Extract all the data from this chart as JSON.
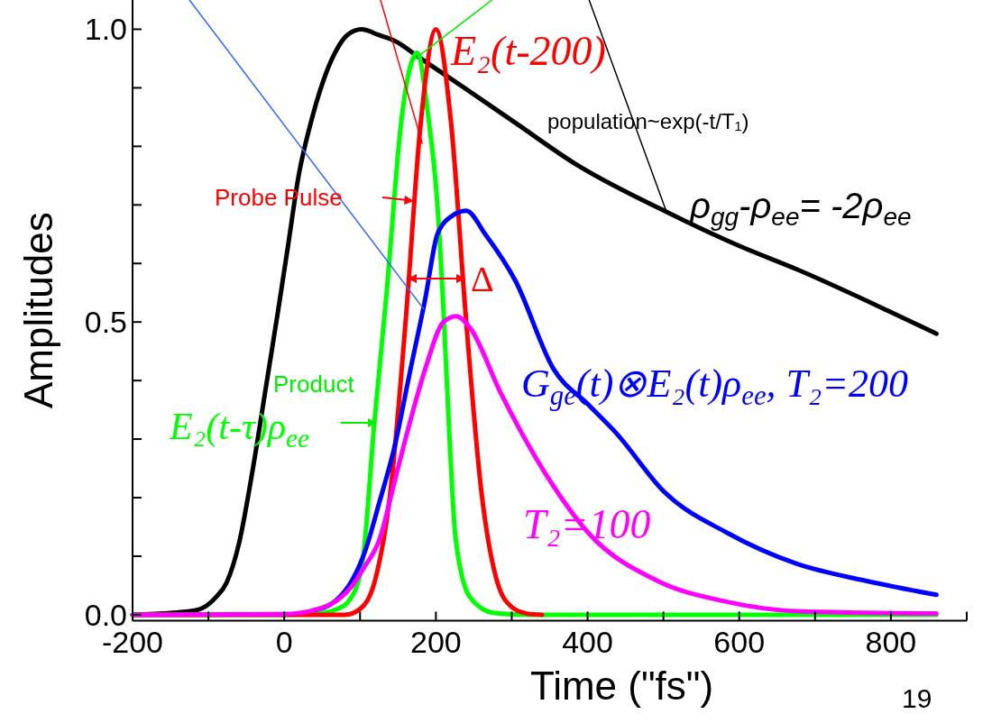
{
  "chart_data": {
    "type": "line",
    "xlabel": "Time (\"fs\")",
    "ylabel": "Amplitudes",
    "xlim": [
      -200,
      900
    ],
    "ylim": [
      -0.01,
      1.05
    ],
    "xticks": [
      -200,
      {
        "value": -100,
        "label": null
      },
      0,
      {
        "value": 100,
        "label": null
      },
      200,
      {
        "value": 300,
        "label": null
      },
      400,
      {
        "value": 500,
        "label": null
      },
      600,
      {
        "value": 700,
        "label": null
      },
      800,
      {
        "value": 900,
        "label": null
      }
    ],
    "yticks": [
      {
        "value": 0,
        "label": "0.0"
      },
      {
        "value": 0.1,
        "label": null
      },
      {
        "value": 0.2,
        "label": null
      },
      {
        "value": 0.3,
        "label": null
      },
      {
        "value": 0.4,
        "label": null
      },
      {
        "value": 0.5,
        "label": "0.5"
      },
      {
        "value": 0.6,
        "label": null
      },
      {
        "value": 0.7,
        "label": null
      },
      {
        "value": 0.8,
        "label": null
      },
      {
        "value": 0.9,
        "label": null
      },
      {
        "value": 1.0,
        "label": "1.0"
      }
    ],
    "grid": false,
    "legend": false,
    "marker": "none",
    "line_style": "solid",
    "series": [
      {
        "name": "ρ$_{gg}$-ρ$_{ee}$= -2ρ$_{ee}$",
        "color": "#000000",
        "x": [
          -200,
          -150,
          -115,
          -90,
          -76,
          -60,
          -40,
          -24,
          -8,
          5,
          19,
          35,
          51,
          67,
          83,
          102,
          125,
          146,
          180,
          226,
          305,
          384,
          501,
          600,
          676,
          795,
          860
        ],
        "values": [
          0,
          0.003,
          0.008,
          0.03,
          0.055,
          0.12,
          0.26,
          0.39,
          0.52,
          0.63,
          0.75,
          0.84,
          0.91,
          0.96,
          0.99,
          1.0,
          0.99,
          0.98,
          0.95,
          0.91,
          0.84,
          0.77,
          0.69,
          0.63,
          0.59,
          0.52,
          0.48
        ]
      },
      {
        "name": "E₂(t-τ)ρ$_{ee}$",
        "color": "#00ff00",
        "x": [
          -200,
          0,
          50,
          70,
          83,
          102,
          119,
          135,
          155,
          165,
          175,
          190,
          202,
          210,
          218,
          226,
          245,
          277,
          320,
          860
        ],
        "values": [
          0,
          0,
          0.003,
          0.01,
          0.02,
          0.08,
          0.33,
          0.55,
          0.85,
          0.93,
          0.96,
          0.85,
          0.7,
          0.52,
          0.3,
          0.13,
          0.03,
          0.003,
          0,
          0
        ]
      },
      {
        "name": "E₂(t-200)",
        "color": "#ff0000",
        "x": [
          -200,
          80,
          100,
          120,
          140,
          160,
          180,
          200,
          220,
          240,
          260,
          280,
          300,
          320,
          340
        ],
        "values": [
          0,
          0,
          0.01,
          0.06,
          0.21,
          0.5,
          0.84,
          1.0,
          0.84,
          0.5,
          0.21,
          0.06,
          0.013,
          0.002,
          0
        ]
      },
      {
        "name": "G$_{ge}$(t)⊗E₂(t)ρ$_{ee}$, T₂=200",
        "color": "#0000ff",
        "x": [
          40,
          67,
          90,
          107,
          125,
          146,
          165,
          186,
          202,
          220,
          240,
          265,
          305,
          355,
          400,
          438,
          501,
          584,
          676,
          767,
          860
        ],
        "values": [
          0.008,
          0.023,
          0.06,
          0.11,
          0.19,
          0.29,
          0.41,
          0.54,
          0.65,
          0.68,
          0.69,
          0.65,
          0.57,
          0.42,
          0.36,
          0.31,
          0.21,
          0.14,
          0.087,
          0.058,
          0.034
        ]
      },
      {
        "color": "#3366ff",
        "x": [
          -125,
          184
        ],
        "values": [
          1.05,
          0.522
        ]
      },
      {
        "color": "#ff0000",
        "x": [
          127,
          182
        ],
        "values": [
          1.05,
          0.805
        ]
      },
      {
        "color": "#00ee00",
        "x": [
          274,
          168
        ],
        "values": [
          1.05,
          0.945
        ]
      },
      {
        "color": "#000000",
        "x": [
          402,
          503
        ],
        "values": [
          1.05,
          0.692
        ]
      },
      {
        "name": "T₂=100",
        "color": "#ff00ff",
        "x": [
          -200,
          0,
          40,
          70,
          90,
          105,
          126,
          146,
          166,
          186,
          210,
          227,
          245,
          285,
          345,
          401,
          492,
          584,
          676,
          860
        ],
        "values": [
          0,
          0.001,
          0.008,
          0.025,
          0.05,
          0.08,
          0.13,
          0.23,
          0.33,
          0.42,
          0.5,
          0.51,
          0.49,
          0.38,
          0.24,
          0.14,
          0.058,
          0.022,
          0.006,
          0.002
        ]
      }
    ],
    "annotations": [
      "Probe Pulse",
      "Product",
      "population~exp(-t/T₁)",
      "Δ",
      "19"
    ]
  }
}
